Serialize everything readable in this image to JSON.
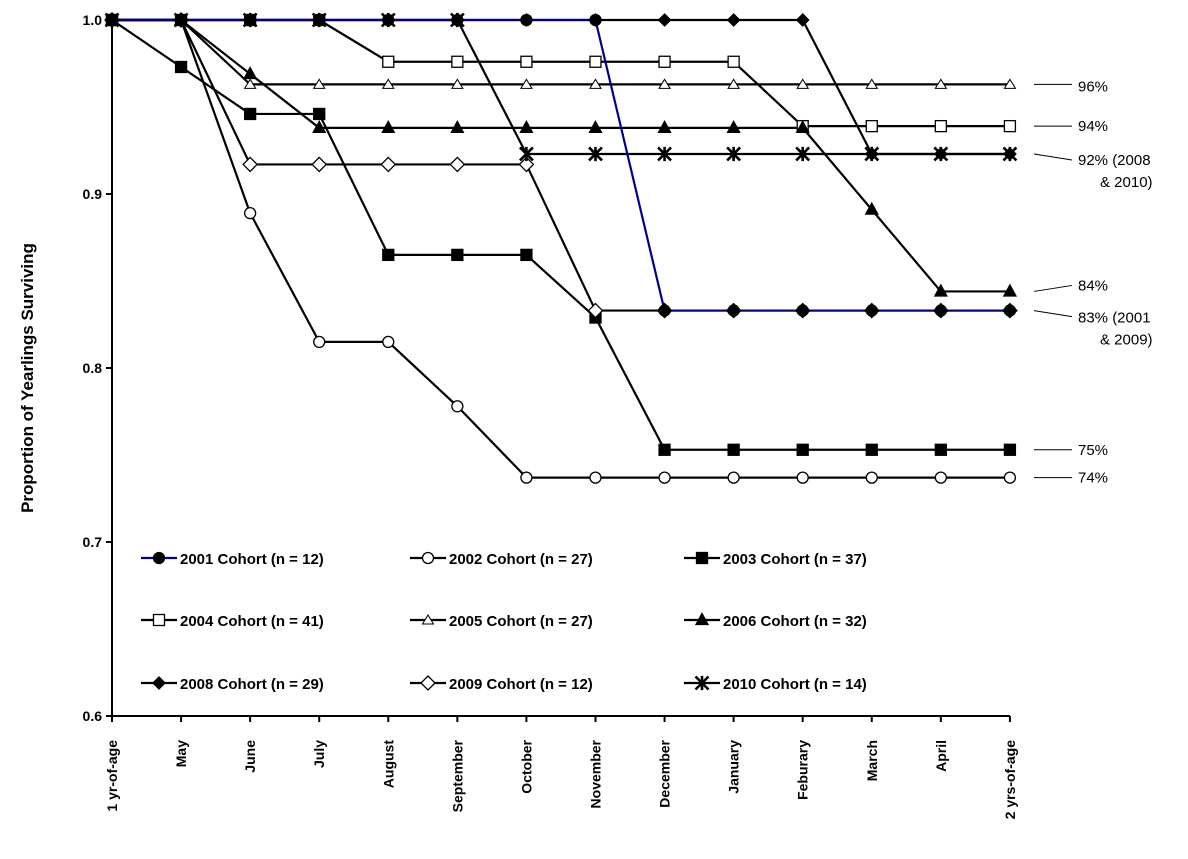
{
  "chart_data": {
    "type": "line",
    "ylabel": "Proportion of Yearlings Surviving",
    "ylim": [
      0.6,
      1.0
    ],
    "yticks": [
      "0.6",
      "0.7",
      "0.8",
      "0.9",
      "1.0"
    ],
    "categories": [
      "1 yr-of-age",
      "May",
      "June",
      "July",
      "August",
      "September",
      "October",
      "November",
      "December",
      "January",
      "Feburary",
      "March",
      "April",
      "2 yrs-of-age"
    ],
    "legend_position": "lower-left inside plot",
    "series": [
      {
        "name": "2001 Cohort (n = 12)",
        "color": "#00008B",
        "marker": "filled-circle",
        "values": [
          1.0,
          1.0,
          1.0,
          1.0,
          1.0,
          1.0,
          1.0,
          1.0,
          0.833,
          0.833,
          0.833,
          0.833,
          0.833,
          0.833
        ]
      },
      {
        "name": "2002 Cohort (n = 27)",
        "color": "#000000",
        "marker": "open-circle",
        "values": [
          1.0,
          1.0,
          0.889,
          0.815,
          0.815,
          0.778,
          0.737,
          0.737,
          0.737,
          0.737,
          0.737,
          0.737,
          0.737,
          0.737
        ]
      },
      {
        "name": "2003 Cohort (n = 37)",
        "color": "#000000",
        "marker": "filled-square",
        "values": [
          1.0,
          0.973,
          0.946,
          0.946,
          0.865,
          0.865,
          0.865,
          0.829,
          0.753,
          0.753,
          0.753,
          0.753,
          0.753,
          0.753
        ]
      },
      {
        "name": "2004 Cohort (n = 41)",
        "color": "#000000",
        "marker": "open-square",
        "values": [
          1.0,
          1.0,
          1.0,
          1.0,
          0.976,
          0.976,
          0.976,
          0.976,
          0.976,
          0.976,
          0.939,
          0.939,
          0.939,
          0.939
        ]
      },
      {
        "name": "2005 Cohort (n = 27)",
        "color": "#000000",
        "marker": "open-triangle",
        "values": [
          1.0,
          1.0,
          0.963,
          0.963,
          0.963,
          0.963,
          0.963,
          0.963,
          0.963,
          0.963,
          0.963,
          0.963,
          0.963,
          0.963
        ]
      },
      {
        "name": "2006 Cohort (n = 32)",
        "color": "#000000",
        "marker": "filled-triangle",
        "values": [
          1.0,
          1.0,
          0.969,
          0.938,
          0.938,
          0.938,
          0.938,
          0.938,
          0.938,
          0.938,
          0.938,
          0.891,
          0.844,
          0.844
        ]
      },
      {
        "name": "2008 Cohort (n = 29)",
        "color": "#000000",
        "marker": "filled-diamond",
        "values": [
          1.0,
          1.0,
          1.0,
          1.0,
          1.0,
          1.0,
          1.0,
          1.0,
          1.0,
          1.0,
          1.0,
          0.923,
          0.923,
          0.923
        ]
      },
      {
        "name": "2009 Cohort (n = 12)",
        "color": "#000000",
        "marker": "open-diamond",
        "values": [
          1.0,
          1.0,
          0.917,
          0.917,
          0.917,
          0.917,
          0.917,
          0.833,
          0.833,
          0.833,
          0.833,
          0.833,
          0.833,
          0.833
        ]
      },
      {
        "name": "2010 Cohort (n = 14)",
        "color": "#000000",
        "marker": "star",
        "values": [
          1.0,
          1.0,
          1.0,
          1.0,
          1.0,
          1.0,
          0.923,
          0.923,
          0.923,
          0.923,
          0.923,
          0.923,
          0.923,
          0.923
        ]
      }
    ],
    "annotations": [
      {
        "lines": [
          "96%"
        ],
        "value": 0.963
      },
      {
        "lines": [
          "94%"
        ],
        "value": 0.939
      },
      {
        "lines": [
          "92% (2008",
          "& 2010)"
        ],
        "value": 0.923
      },
      {
        "lines": [
          "84%"
        ],
        "value": 0.844
      },
      {
        "lines": [
          "83% (2001",
          "& 2009)"
        ],
        "value": 0.833
      },
      {
        "lines": [
          "75%"
        ],
        "value": 0.753
      },
      {
        "lines": [
          "74%"
        ],
        "value": 0.737
      }
    ]
  }
}
